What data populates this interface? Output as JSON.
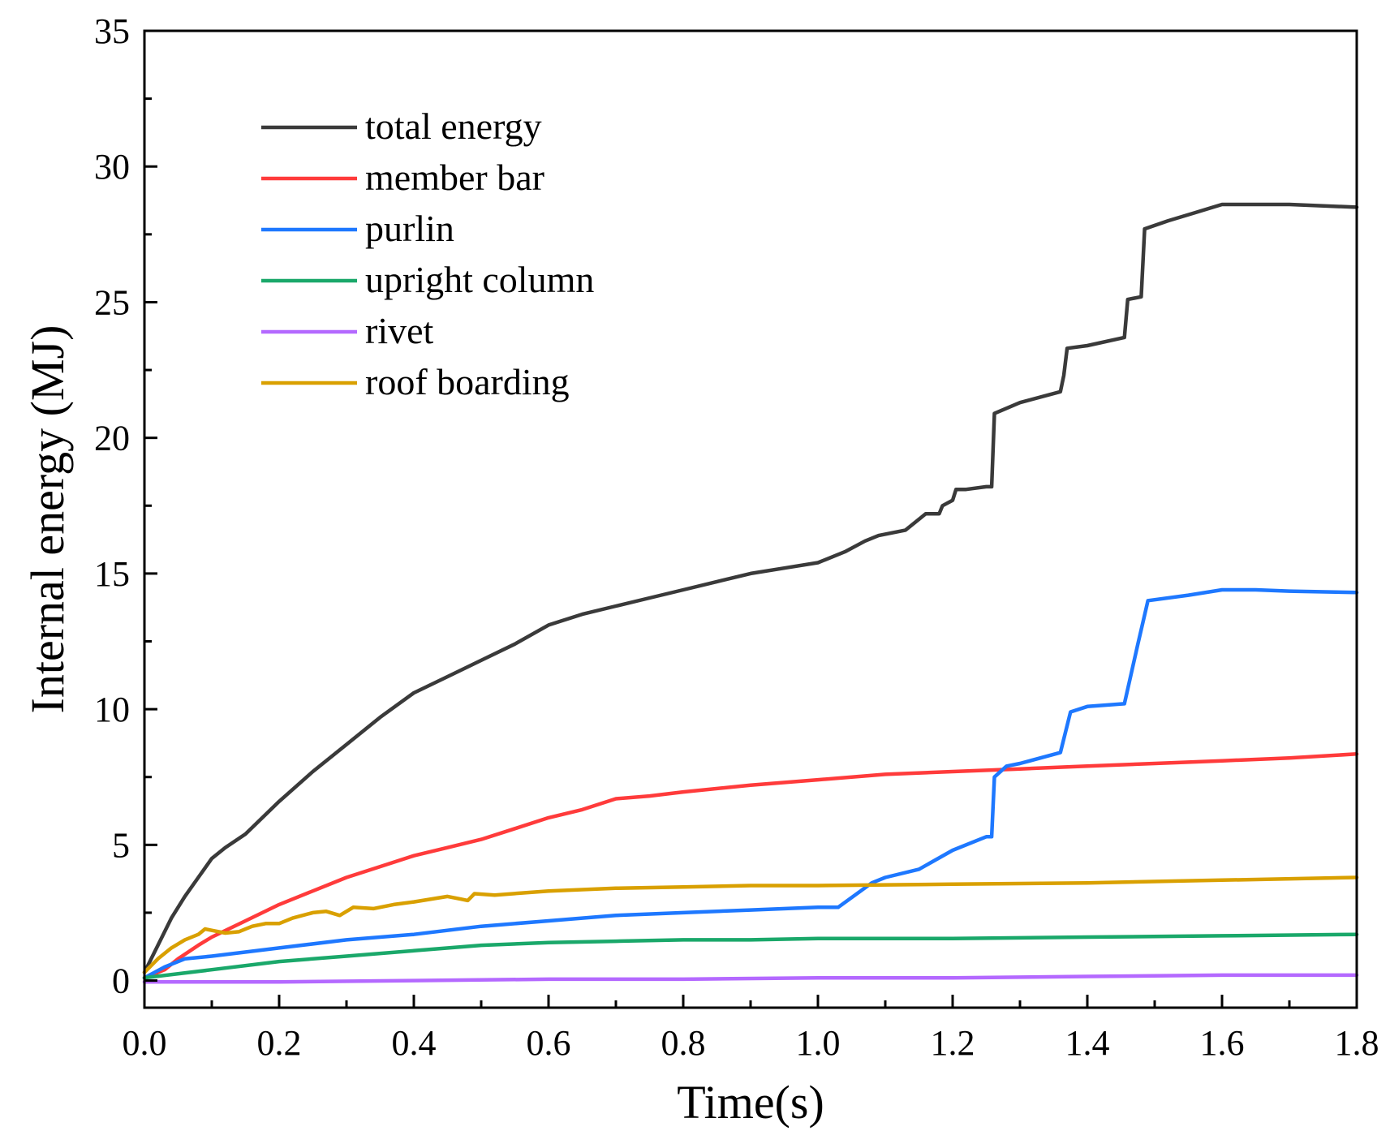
{
  "chart_data": {
    "type": "line",
    "title": "",
    "xlabel": "Time(s)",
    "ylabel": "Internal energy (MJ)",
    "xlim": [
      0,
      1.8
    ],
    "ylim": [
      -1,
      35
    ],
    "xticks": [
      0.0,
      0.2,
      0.4,
      0.6,
      0.8,
      1.0,
      1.2,
      1.4,
      1.6,
      1.8
    ],
    "xtick_labels": [
      "0.0",
      "0.2",
      "0.4",
      "0.6",
      "0.8",
      "1.0",
      "1.2",
      "1.4",
      "1.6",
      "1.8"
    ],
    "yticks": [
      0,
      5,
      10,
      15,
      20,
      25,
      30,
      35
    ],
    "ytick_labels": [
      "0",
      "5",
      "10",
      "15",
      "20",
      "25",
      "30",
      "35"
    ],
    "legend_position": "top-left",
    "series": [
      {
        "name": "total energy",
        "color": "#3a3a3a",
        "points": [
          [
            0.0,
            0.3
          ],
          [
            0.02,
            1.3
          ],
          [
            0.04,
            2.3
          ],
          [
            0.06,
            3.1
          ],
          [
            0.08,
            3.8
          ],
          [
            0.1,
            4.5
          ],
          [
            0.12,
            4.9
          ],
          [
            0.15,
            5.4
          ],
          [
            0.2,
            6.6
          ],
          [
            0.25,
            7.7
          ],
          [
            0.3,
            8.7
          ],
          [
            0.35,
            9.7
          ],
          [
            0.4,
            10.6
          ],
          [
            0.45,
            11.2
          ],
          [
            0.5,
            11.8
          ],
          [
            0.55,
            12.4
          ],
          [
            0.6,
            13.1
          ],
          [
            0.65,
            13.5
          ],
          [
            0.7,
            13.8
          ],
          [
            0.75,
            14.1
          ],
          [
            0.8,
            14.4
          ],
          [
            0.85,
            14.7
          ],
          [
            0.9,
            15.0
          ],
          [
            0.95,
            15.2
          ],
          [
            1.0,
            15.4
          ],
          [
            1.04,
            15.8
          ],
          [
            1.07,
            16.2
          ],
          [
            1.09,
            16.4
          ],
          [
            1.13,
            16.6
          ],
          [
            1.15,
            17.0
          ],
          [
            1.16,
            17.2
          ],
          [
            1.18,
            17.2
          ],
          [
            1.185,
            17.5
          ],
          [
            1.2,
            17.7
          ],
          [
            1.205,
            18.1
          ],
          [
            1.22,
            18.1
          ],
          [
            1.25,
            18.2
          ],
          [
            1.258,
            18.2
          ],
          [
            1.262,
            20.9
          ],
          [
            1.3,
            21.3
          ],
          [
            1.36,
            21.7
          ],
          [
            1.365,
            22.3
          ],
          [
            1.37,
            23.3
          ],
          [
            1.4,
            23.4
          ],
          [
            1.455,
            23.7
          ],
          [
            1.46,
            25.1
          ],
          [
            1.48,
            25.2
          ],
          [
            1.485,
            27.7
          ],
          [
            1.52,
            28.0
          ],
          [
            1.56,
            28.3
          ],
          [
            1.6,
            28.6
          ],
          [
            1.7,
            28.6
          ],
          [
            1.8,
            28.5
          ]
        ]
      },
      {
        "name": "member bar",
        "color": "#ff3b3b",
        "points": [
          [
            0.0,
            0.1
          ],
          [
            0.03,
            0.4
          ],
          [
            0.05,
            0.8
          ],
          [
            0.08,
            1.3
          ],
          [
            0.1,
            1.6
          ],
          [
            0.15,
            2.2
          ],
          [
            0.2,
            2.8
          ],
          [
            0.25,
            3.3
          ],
          [
            0.3,
            3.8
          ],
          [
            0.35,
            4.2
          ],
          [
            0.4,
            4.6
          ],
          [
            0.45,
            4.9
          ],
          [
            0.5,
            5.2
          ],
          [
            0.55,
            5.6
          ],
          [
            0.6,
            6.0
          ],
          [
            0.65,
            6.3
          ],
          [
            0.7,
            6.7
          ],
          [
            0.75,
            6.8
          ],
          [
            0.8,
            6.95
          ],
          [
            0.9,
            7.2
          ],
          [
            1.0,
            7.4
          ],
          [
            1.1,
            7.6
          ],
          [
            1.2,
            7.7
          ],
          [
            1.3,
            7.8
          ],
          [
            1.4,
            7.9
          ],
          [
            1.5,
            8.0
          ],
          [
            1.6,
            8.1
          ],
          [
            1.7,
            8.2
          ],
          [
            1.8,
            8.35
          ]
        ]
      },
      {
        "name": "purlin",
        "color": "#1e78ff",
        "points": [
          [
            0.0,
            0.1
          ],
          [
            0.03,
            0.5
          ],
          [
            0.06,
            0.8
          ],
          [
            0.1,
            0.9
          ],
          [
            0.2,
            1.2
          ],
          [
            0.3,
            1.5
          ],
          [
            0.4,
            1.7
          ],
          [
            0.5,
            2.0
          ],
          [
            0.6,
            2.2
          ],
          [
            0.7,
            2.4
          ],
          [
            0.8,
            2.5
          ],
          [
            0.9,
            2.6
          ],
          [
            1.0,
            2.7
          ],
          [
            1.03,
            2.7
          ],
          [
            1.08,
            3.6
          ],
          [
            1.1,
            3.8
          ],
          [
            1.15,
            4.1
          ],
          [
            1.2,
            4.8
          ],
          [
            1.25,
            5.3
          ],
          [
            1.258,
            5.3
          ],
          [
            1.262,
            7.5
          ],
          [
            1.28,
            7.9
          ],
          [
            1.3,
            8.0
          ],
          [
            1.36,
            8.4
          ],
          [
            1.375,
            9.9
          ],
          [
            1.4,
            10.1
          ],
          [
            1.455,
            10.2
          ],
          [
            1.475,
            12.4
          ],
          [
            1.49,
            14.0
          ],
          [
            1.55,
            14.2
          ],
          [
            1.6,
            14.4
          ],
          [
            1.65,
            14.4
          ],
          [
            1.7,
            14.35
          ],
          [
            1.8,
            14.3
          ]
        ]
      },
      {
        "name": "upright column",
        "color": "#1aa86a",
        "points": [
          [
            0.0,
            0.1
          ],
          [
            0.1,
            0.4
          ],
          [
            0.2,
            0.7
          ],
          [
            0.3,
            0.9
          ],
          [
            0.4,
            1.1
          ],
          [
            0.5,
            1.3
          ],
          [
            0.6,
            1.4
          ],
          [
            0.7,
            1.45
          ],
          [
            0.8,
            1.5
          ],
          [
            0.9,
            1.5
          ],
          [
            1.0,
            1.55
          ],
          [
            1.2,
            1.55
          ],
          [
            1.4,
            1.6
          ],
          [
            1.6,
            1.65
          ],
          [
            1.8,
            1.7
          ]
        ]
      },
      {
        "name": "rivet",
        "color": "#b469ff",
        "points": [
          [
            0.0,
            -0.05
          ],
          [
            0.2,
            -0.05
          ],
          [
            0.4,
            0.0
          ],
          [
            0.6,
            0.05
          ],
          [
            0.8,
            0.05
          ],
          [
            1.0,
            0.1
          ],
          [
            1.2,
            0.1
          ],
          [
            1.4,
            0.15
          ],
          [
            1.6,
            0.2
          ],
          [
            1.8,
            0.2
          ]
        ]
      },
      {
        "name": "roof boarding",
        "color": "#d9a000",
        "points": [
          [
            0.0,
            0.3
          ],
          [
            0.02,
            0.8
          ],
          [
            0.04,
            1.2
          ],
          [
            0.06,
            1.5
          ],
          [
            0.08,
            1.7
          ],
          [
            0.09,
            1.9
          ],
          [
            0.1,
            1.85
          ],
          [
            0.12,
            1.75
          ],
          [
            0.14,
            1.8
          ],
          [
            0.16,
            2.0
          ],
          [
            0.18,
            2.1
          ],
          [
            0.2,
            2.1
          ],
          [
            0.22,
            2.3
          ],
          [
            0.25,
            2.5
          ],
          [
            0.27,
            2.55
          ],
          [
            0.29,
            2.4
          ],
          [
            0.31,
            2.7
          ],
          [
            0.34,
            2.65
          ],
          [
            0.37,
            2.8
          ],
          [
            0.4,
            2.9
          ],
          [
            0.45,
            3.1
          ],
          [
            0.47,
            3.0
          ],
          [
            0.48,
            2.95
          ],
          [
            0.49,
            3.2
          ],
          [
            0.52,
            3.15
          ],
          [
            0.6,
            3.3
          ],
          [
            0.7,
            3.4
          ],
          [
            0.8,
            3.45
          ],
          [
            0.9,
            3.5
          ],
          [
            1.0,
            3.5
          ],
          [
            1.2,
            3.55
          ],
          [
            1.4,
            3.6
          ],
          [
            1.6,
            3.7
          ],
          [
            1.8,
            3.8
          ]
        ]
      }
    ]
  }
}
